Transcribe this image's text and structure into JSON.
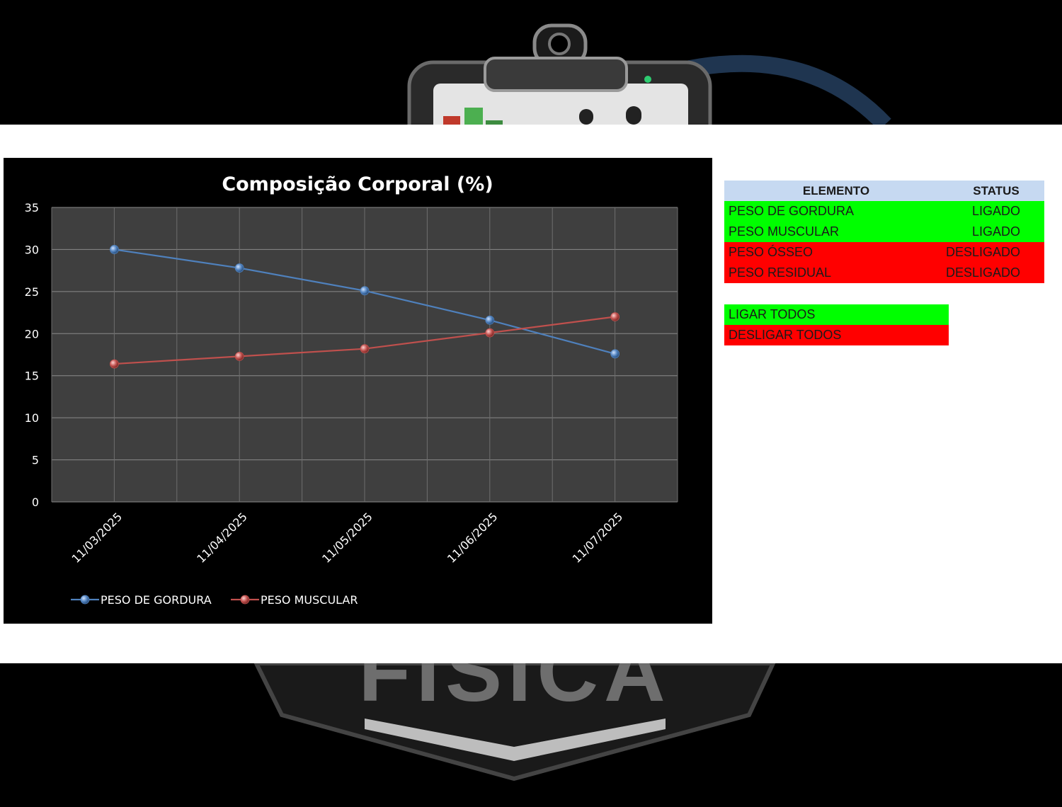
{
  "chart_data": {
    "type": "line",
    "title": "Composição Corporal  (%)",
    "categories": [
      "11/03/2025",
      "11/04/2025",
      "11/05/2025",
      "11/06/2025",
      "11/07/2025"
    ],
    "series": [
      {
        "name": "PESO DE GORDURA",
        "values": [
          30.0,
          27.8,
          25.1,
          21.6,
          17.6
        ],
        "color": "#4f81bd"
      },
      {
        "name": "PESO MUSCULAR",
        "values": [
          16.4,
          17.3,
          18.2,
          20.1,
          22.0
        ],
        "color": "#c0504d"
      }
    ],
    "ylim": [
      0,
      35
    ],
    "yticks": [
      "0",
      "5",
      "10",
      "15",
      "20",
      "25",
      "30",
      "35"
    ],
    "grid": true,
    "legend": "bottom-left",
    "plot_bg": "#3f3f3f",
    "bg": "#000000"
  },
  "status_table": {
    "header": {
      "element": "ELEMENTO",
      "status": "STATUS"
    },
    "rows": [
      {
        "element": "PESO DE GORDURA",
        "status": "LIGADO",
        "state": "on"
      },
      {
        "element": "PESO MUSCULAR",
        "status": "LIGADO",
        "state": "on"
      },
      {
        "element": "PESO ÓSSEO",
        "status": "DESLIGADO",
        "state": "off"
      },
      {
        "element": "PESO RESIDUAL",
        "status": "DESLIGADO",
        "state": "off"
      }
    ]
  },
  "buttons": {
    "on_all": "LIGAR TODOS",
    "off_all": "DESLIGAR TODOS"
  },
  "background": {
    "logo_text": "FISICA"
  },
  "colors": {
    "on": "#00ff00",
    "off": "#ff0000",
    "header": "#c6d9f1"
  }
}
